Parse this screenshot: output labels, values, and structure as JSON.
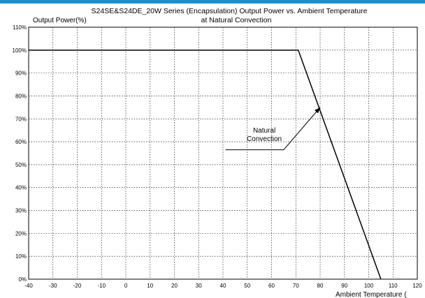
{
  "chart_data": {
    "type": "line",
    "title": "S24SE&S24DE_20W Series (Encapsulation)  Output Power vs. Ambient Temperature",
    "subtitle": "at Natural Convection",
    "ylabel": "Output Power(%)",
    "xlabel": "Ambient Temperature (",
    "xlim": [
      -40,
      120
    ],
    "ylim": [
      0,
      110
    ],
    "xticks": [
      -40,
      -30,
      -20,
      -10,
      0,
      10,
      20,
      30,
      40,
      50,
      60,
      70,
      80,
      90,
      100,
      110,
      120
    ],
    "yticks": [
      "0%",
      "10%",
      "20%",
      "30%",
      "40%",
      "50%",
      "60%",
      "70%",
      "80%",
      "90%",
      "100%",
      "110%"
    ],
    "grid": true,
    "series": [
      {
        "x": [
          -40,
          71,
          105
        ],
        "y": [
          100,
          100,
          0
        ]
      }
    ],
    "annotations": [
      {
        "lines": [
          "Natural",
          "Convection"
        ],
        "text_at": [
          57,
          64
        ],
        "arrow_path": [
          [
            41,
            56.5
          ],
          [
            65,
            56.5
          ],
          [
            80,
            75
          ]
        ]
      }
    ],
    "colors": {
      "line": "#000000",
      "grid": "#000000",
      "topbar": "#1b8fd0"
    }
  }
}
